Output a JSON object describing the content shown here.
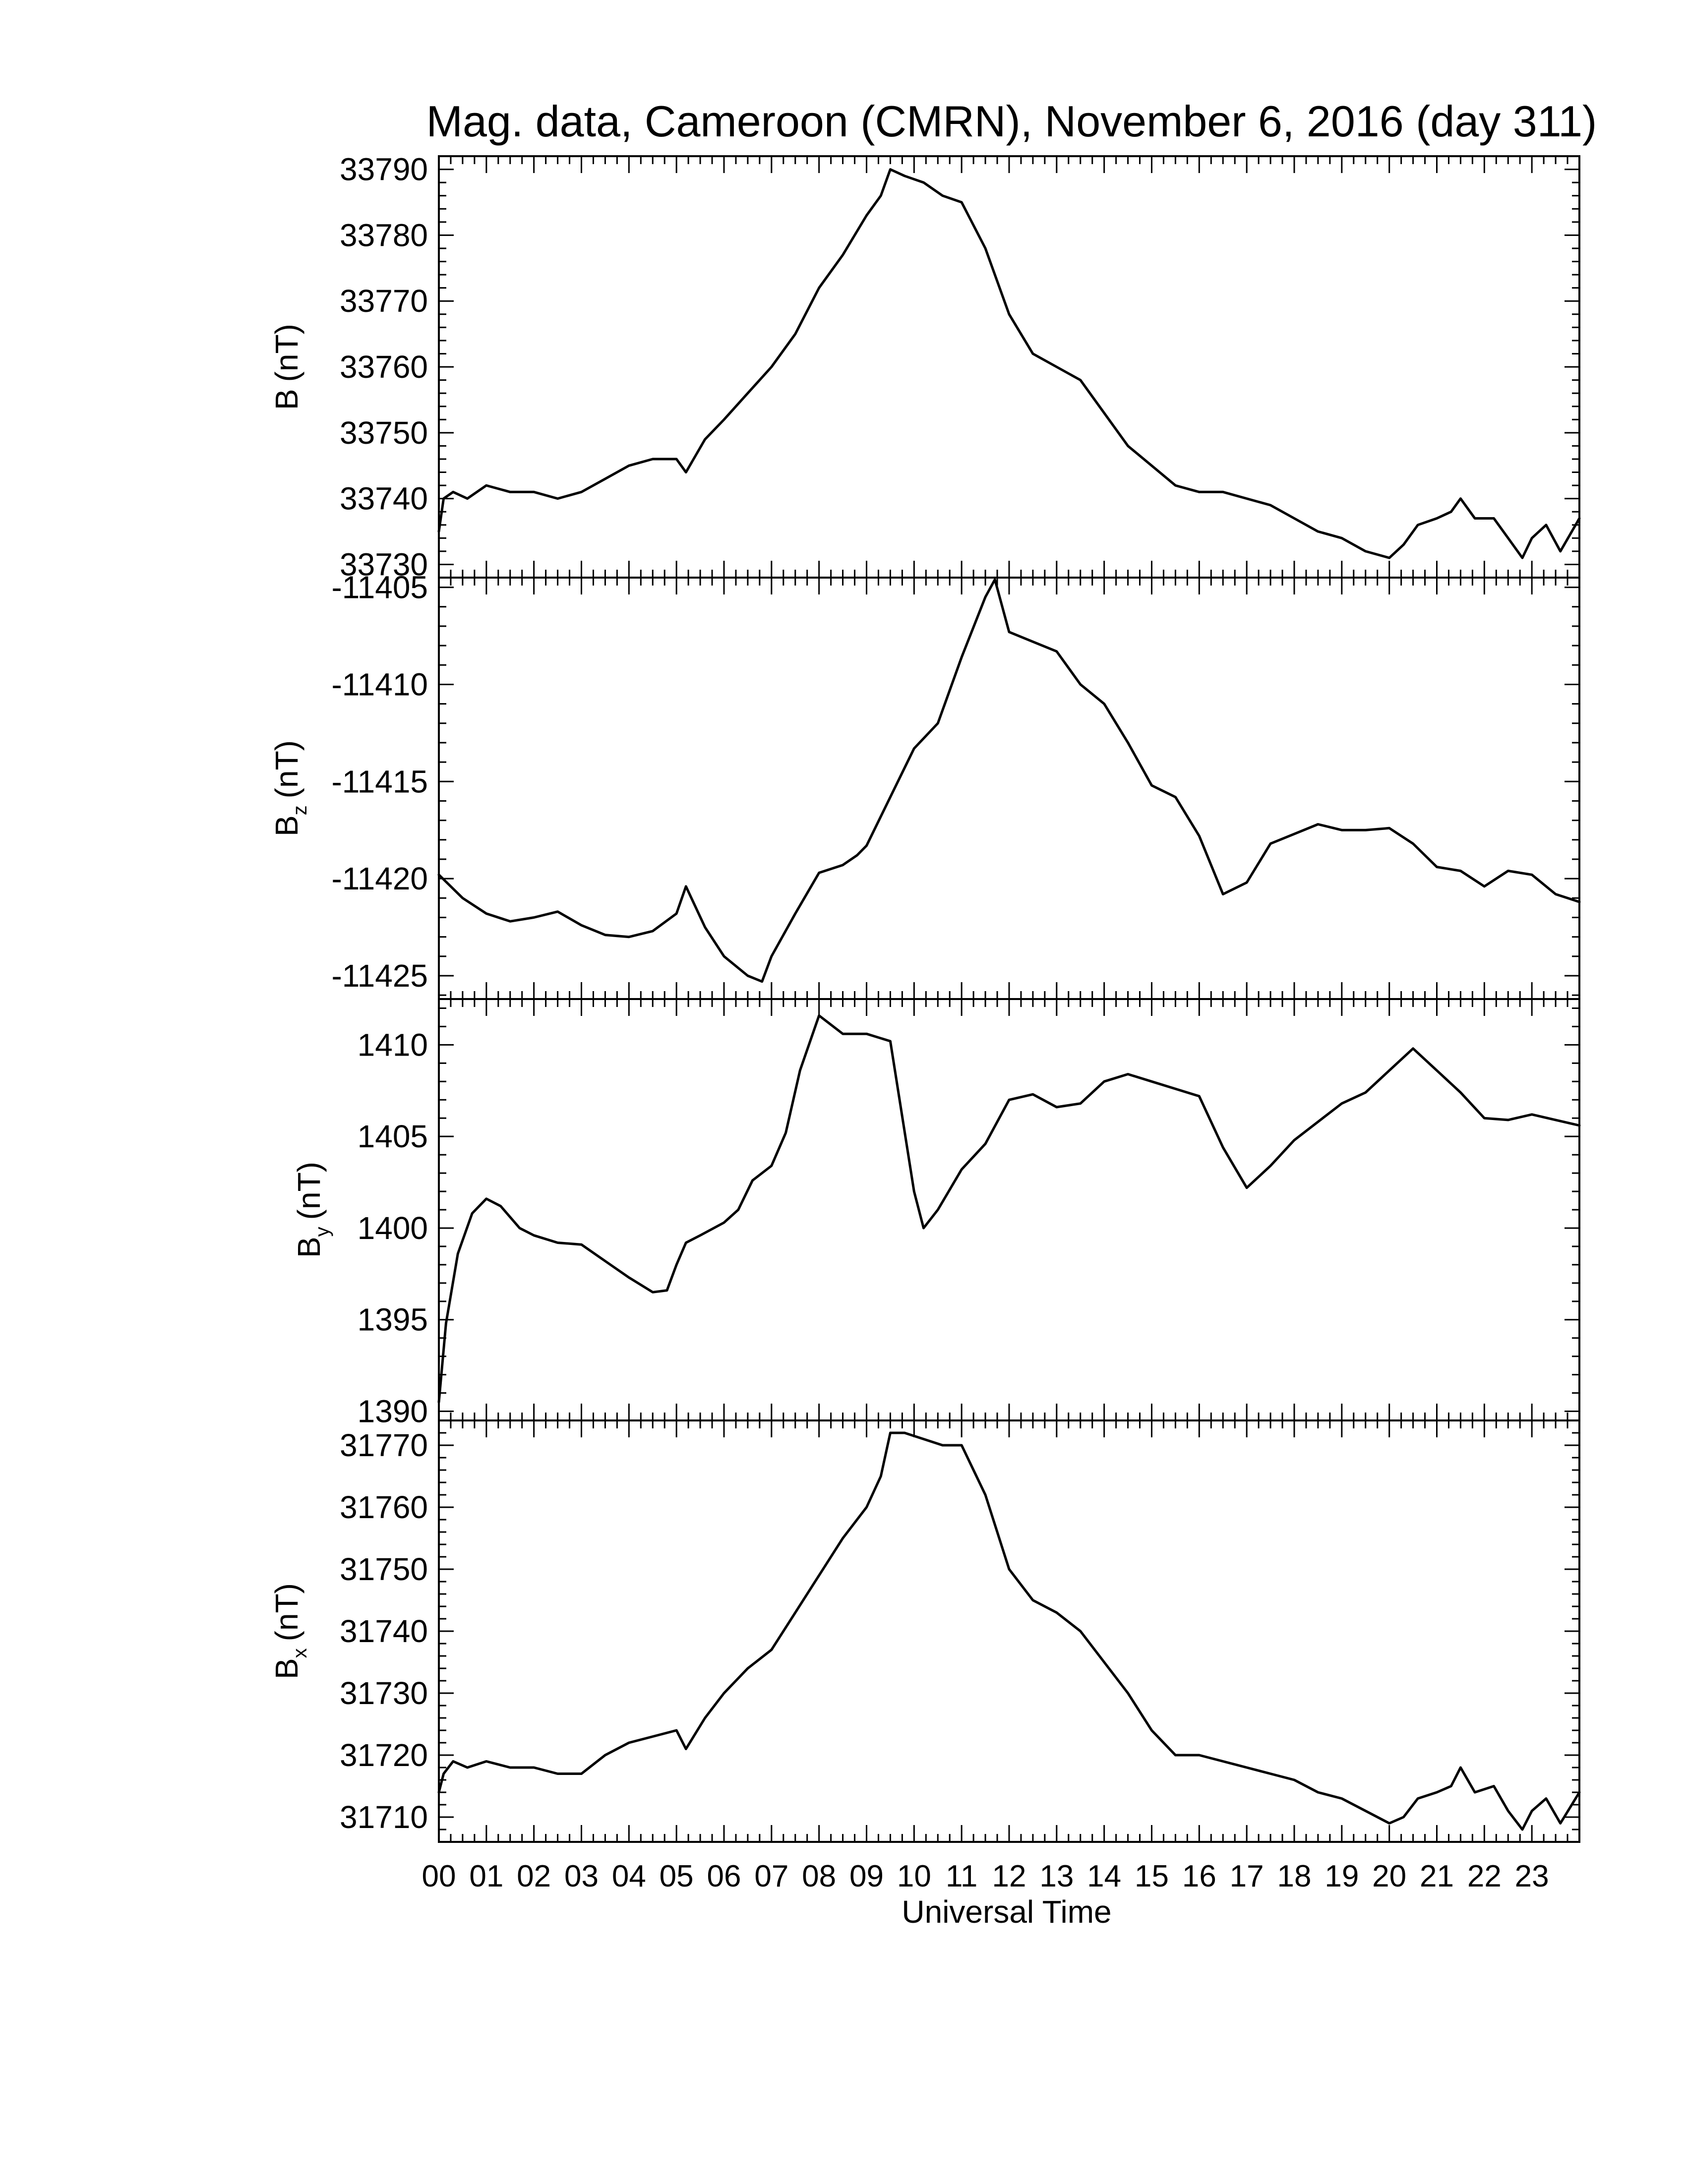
{
  "chart_data": {
    "type": "line",
    "title": "Mag. data, Cameroon (CMRN), November 6, 2016 (day 311)",
    "xlabel": "Universal Time",
    "xlim": [
      0,
      24
    ],
    "xticks": [
      "00",
      "01",
      "02",
      "03",
      "04",
      "05",
      "06",
      "07",
      "08",
      "09",
      "10",
      "11",
      "12",
      "13",
      "14",
      "15",
      "16",
      "17",
      "18",
      "19",
      "20",
      "21",
      "22",
      "23"
    ],
    "grid": false,
    "color": "#000000",
    "panels": [
      {
        "ylabel_main": "B",
        "ylabel_sub": "",
        "ylabel_unit": "(nT)",
        "ylim": [
          33728,
          33792
        ],
        "yticks": [
          33730,
          33740,
          33750,
          33760,
          33770,
          33780,
          33790
        ],
        "series": [
          {
            "x": [
              0,
              0.1,
              0.3,
              0.6,
              1.0,
              1.5,
              2.0,
              2.5,
              3.0,
              3.5,
              4.0,
              4.5,
              5.0,
              5.2,
              5.6,
              6.0,
              6.5,
              7.0,
              7.5,
              8.0,
              8.5,
              9.0,
              9.3,
              9.5,
              9.8,
              10.2,
              10.6,
              11.0,
              11.5,
              12.0,
              12.5,
              13.0,
              13.5,
              14.0,
              14.5,
              15.0,
              15.5,
              16.0,
              16.5,
              17.0,
              17.5,
              18.0,
              18.5,
              19.0,
              19.5,
              20.0,
              20.3,
              20.6,
              21.0,
              21.3,
              21.5,
              21.8,
              22.2,
              22.5,
              22.8,
              23.0,
              23.3,
              23.6,
              24.0
            ],
            "y": [
              33735,
              33740,
              33741,
              33740,
              33742,
              33741,
              33741,
              33740,
              33741,
              33743,
              33745,
              33746,
              33746,
              33744,
              33749,
              33752,
              33756,
              33760,
              33765,
              33772,
              33777,
              33783,
              33786,
              33790,
              33789,
              33788,
              33786,
              33785,
              33778,
              33768,
              33762,
              33760,
              33758,
              33753,
              33748,
              33745,
              33742,
              33741,
              33741,
              33740,
              33739,
              33737,
              33735,
              33734,
              33732,
              33731,
              33733,
              33736,
              33737,
              33738,
              33740,
              33737,
              33737,
              33734,
              33731,
              33734,
              33736,
              33732,
              33737
            ]
          }
        ]
      },
      {
        "ylabel_main": "B",
        "ylabel_sub": "z",
        "ylabel_unit": "(nT)",
        "ylim": [
          -11426.2,
          -11404.5
        ],
        "yticks": [
          -11405,
          -11410,
          -11415,
          -11420,
          -11425
        ],
        "series": [
          {
            "x": [
              0,
              0.5,
              1.0,
              1.5,
              2.0,
              2.5,
              3.0,
              3.5,
              4.0,
              4.5,
              5.0,
              5.2,
              5.6,
              6.0,
              6.5,
              6.8,
              7.0,
              7.5,
              8.0,
              8.5,
              8.8,
              9.0,
              9.5,
              10.0,
              10.5,
              11.0,
              11.5,
              11.7,
              12.0,
              12.5,
              13.0,
              13.5,
              14.0,
              14.5,
              15.0,
              15.5,
              16.0,
              16.5,
              17.0,
              17.5,
              18.0,
              18.5,
              19.0,
              19.5,
              20.0,
              20.5,
              21.0,
              21.5,
              22.0,
              22.5,
              23.0,
              23.5,
              24.0
            ],
            "y": [
              -11419.8,
              -11421,
              -11421.8,
              -11422.2,
              -11422,
              -11421.7,
              -11422.4,
              -11422.9,
              -11423,
              -11422.7,
              -11421.8,
              -11420.4,
              -11422.5,
              -11424,
              -11425,
              -11425.3,
              -11424,
              -11421.8,
              -11419.7,
              -11419.3,
              -11418.8,
              -11418.3,
              -11415.8,
              -11413.3,
              -11412,
              -11408.6,
              -11405.5,
              -11404.6,
              -11407.3,
              -11407.8,
              -11408.3,
              -11410,
              -11411,
              -11413,
              -11415.2,
              -11415.8,
              -11417.8,
              -11420.8,
              -11420.2,
              -11418.2,
              -11417.7,
              -11417.2,
              -11417.5,
              -11417.5,
              -11417.4,
              -11418.2,
              -11419.4,
              -11419.6,
              -11420.4,
              -11419.6,
              -11419.8,
              -11420.8,
              -11421.2
            ]
          }
        ]
      },
      {
        "ylabel_main": "B",
        "ylabel_sub": "y",
        "ylabel_unit": "(nT)",
        "ylim": [
          1389.5,
          1412.5
        ],
        "yticks": [
          1390,
          1395,
          1400,
          1405,
          1410
        ],
        "series": [
          {
            "x": [
              0,
              0.15,
              0.4,
              0.7,
              1.0,
              1.3,
              1.7,
              2.0,
              2.5,
              3.0,
              3.5,
              4.0,
              4.5,
              4.8,
              5.0,
              5.2,
              5.5,
              6.0,
              6.3,
              6.6,
              7.0,
              7.3,
              7.6,
              8.0,
              8.2,
              8.5,
              9.0,
              9.5,
              10.0,
              10.2,
              10.5,
              11.0,
              11.5,
              12.0,
              12.5,
              13.0,
              13.5,
              14.0,
              14.5,
              15.0,
              15.5,
              16.0,
              16.5,
              17.0,
              17.5,
              18.0,
              18.5,
              19.0,
              19.5,
              20.0,
              20.5,
              21.0,
              21.5,
              22.0,
              22.5,
              23.0,
              23.5,
              24.0
            ],
            "y": [
              1390.5,
              1394.8,
              1398.6,
              1400.8,
              1401.6,
              1401.2,
              1400,
              1399.6,
              1399.2,
              1399.1,
              1398.2,
              1397.3,
              1396.5,
              1396.6,
              1398,
              1399.2,
              1399.6,
              1400.3,
              1401,
              1402.6,
              1403.4,
              1405.2,
              1408.6,
              1411.6,
              1411.2,
              1410.6,
              1410.6,
              1410.2,
              1402,
              1400,
              1401,
              1403.2,
              1404.6,
              1407,
              1407.3,
              1406.6,
              1406.8,
              1408,
              1408.4,
              1408,
              1407.6,
              1407.2,
              1404.4,
              1402.2,
              1403.4,
              1404.8,
              1405.8,
              1406.8,
              1407.4,
              1408.6,
              1409.8,
              1408.6,
              1407.4,
              1406,
              1405.9,
              1406.2,
              1405.9,
              1405.6
            ]
          }
        ]
      },
      {
        "ylabel_main": "B",
        "ylabel_sub": "x",
        "ylabel_unit": "(nT)",
        "ylim": [
          31706,
          31774
        ],
        "yticks": [
          31710,
          31720,
          31730,
          31740,
          31750,
          31760,
          31770
        ],
        "series": [
          {
            "x": [
              0,
              0.1,
              0.3,
              0.6,
              1.0,
              1.5,
              2.0,
              2.5,
              3.0,
              3.5,
              4.0,
              4.5,
              5.0,
              5.2,
              5.6,
              6.0,
              6.5,
              7.0,
              7.5,
              8.0,
              8.5,
              9.0,
              9.3,
              9.5,
              9.8,
              10.2,
              10.6,
              11.0,
              11.5,
              12.0,
              12.5,
              13.0,
              13.5,
              14.0,
              14.5,
              15.0,
              15.5,
              16.0,
              16.5,
              17.0,
              17.5,
              18.0,
              18.5,
              19.0,
              19.5,
              20.0,
              20.3,
              20.6,
              21.0,
              21.3,
              21.5,
              21.8,
              22.2,
              22.5,
              22.8,
              23.0,
              23.3,
              23.6,
              24.0
            ],
            "y": [
              31714,
              31717,
              31719,
              31718,
              31719,
              31718,
              31718,
              31717,
              31717,
              31720,
              31722,
              31723,
              31724,
              31721,
              31726,
              31730,
              31734,
              31737,
              31743,
              31749,
              31755,
              31760,
              31765,
              31772,
              31772,
              31771,
              31770,
              31770,
              31762,
              31750,
              31745,
              31743,
              31740,
              31735,
              31730,
              31724,
              31720,
              31720,
              31719,
              31718,
              31717,
              31716,
              31714,
              31713,
              31711,
              31709,
              31710,
              31713,
              31714,
              31715,
              31718,
              31714,
              31715,
              31711,
              31708,
              31711,
              31713,
              31709,
              31714
            ]
          }
        ]
      }
    ]
  }
}
